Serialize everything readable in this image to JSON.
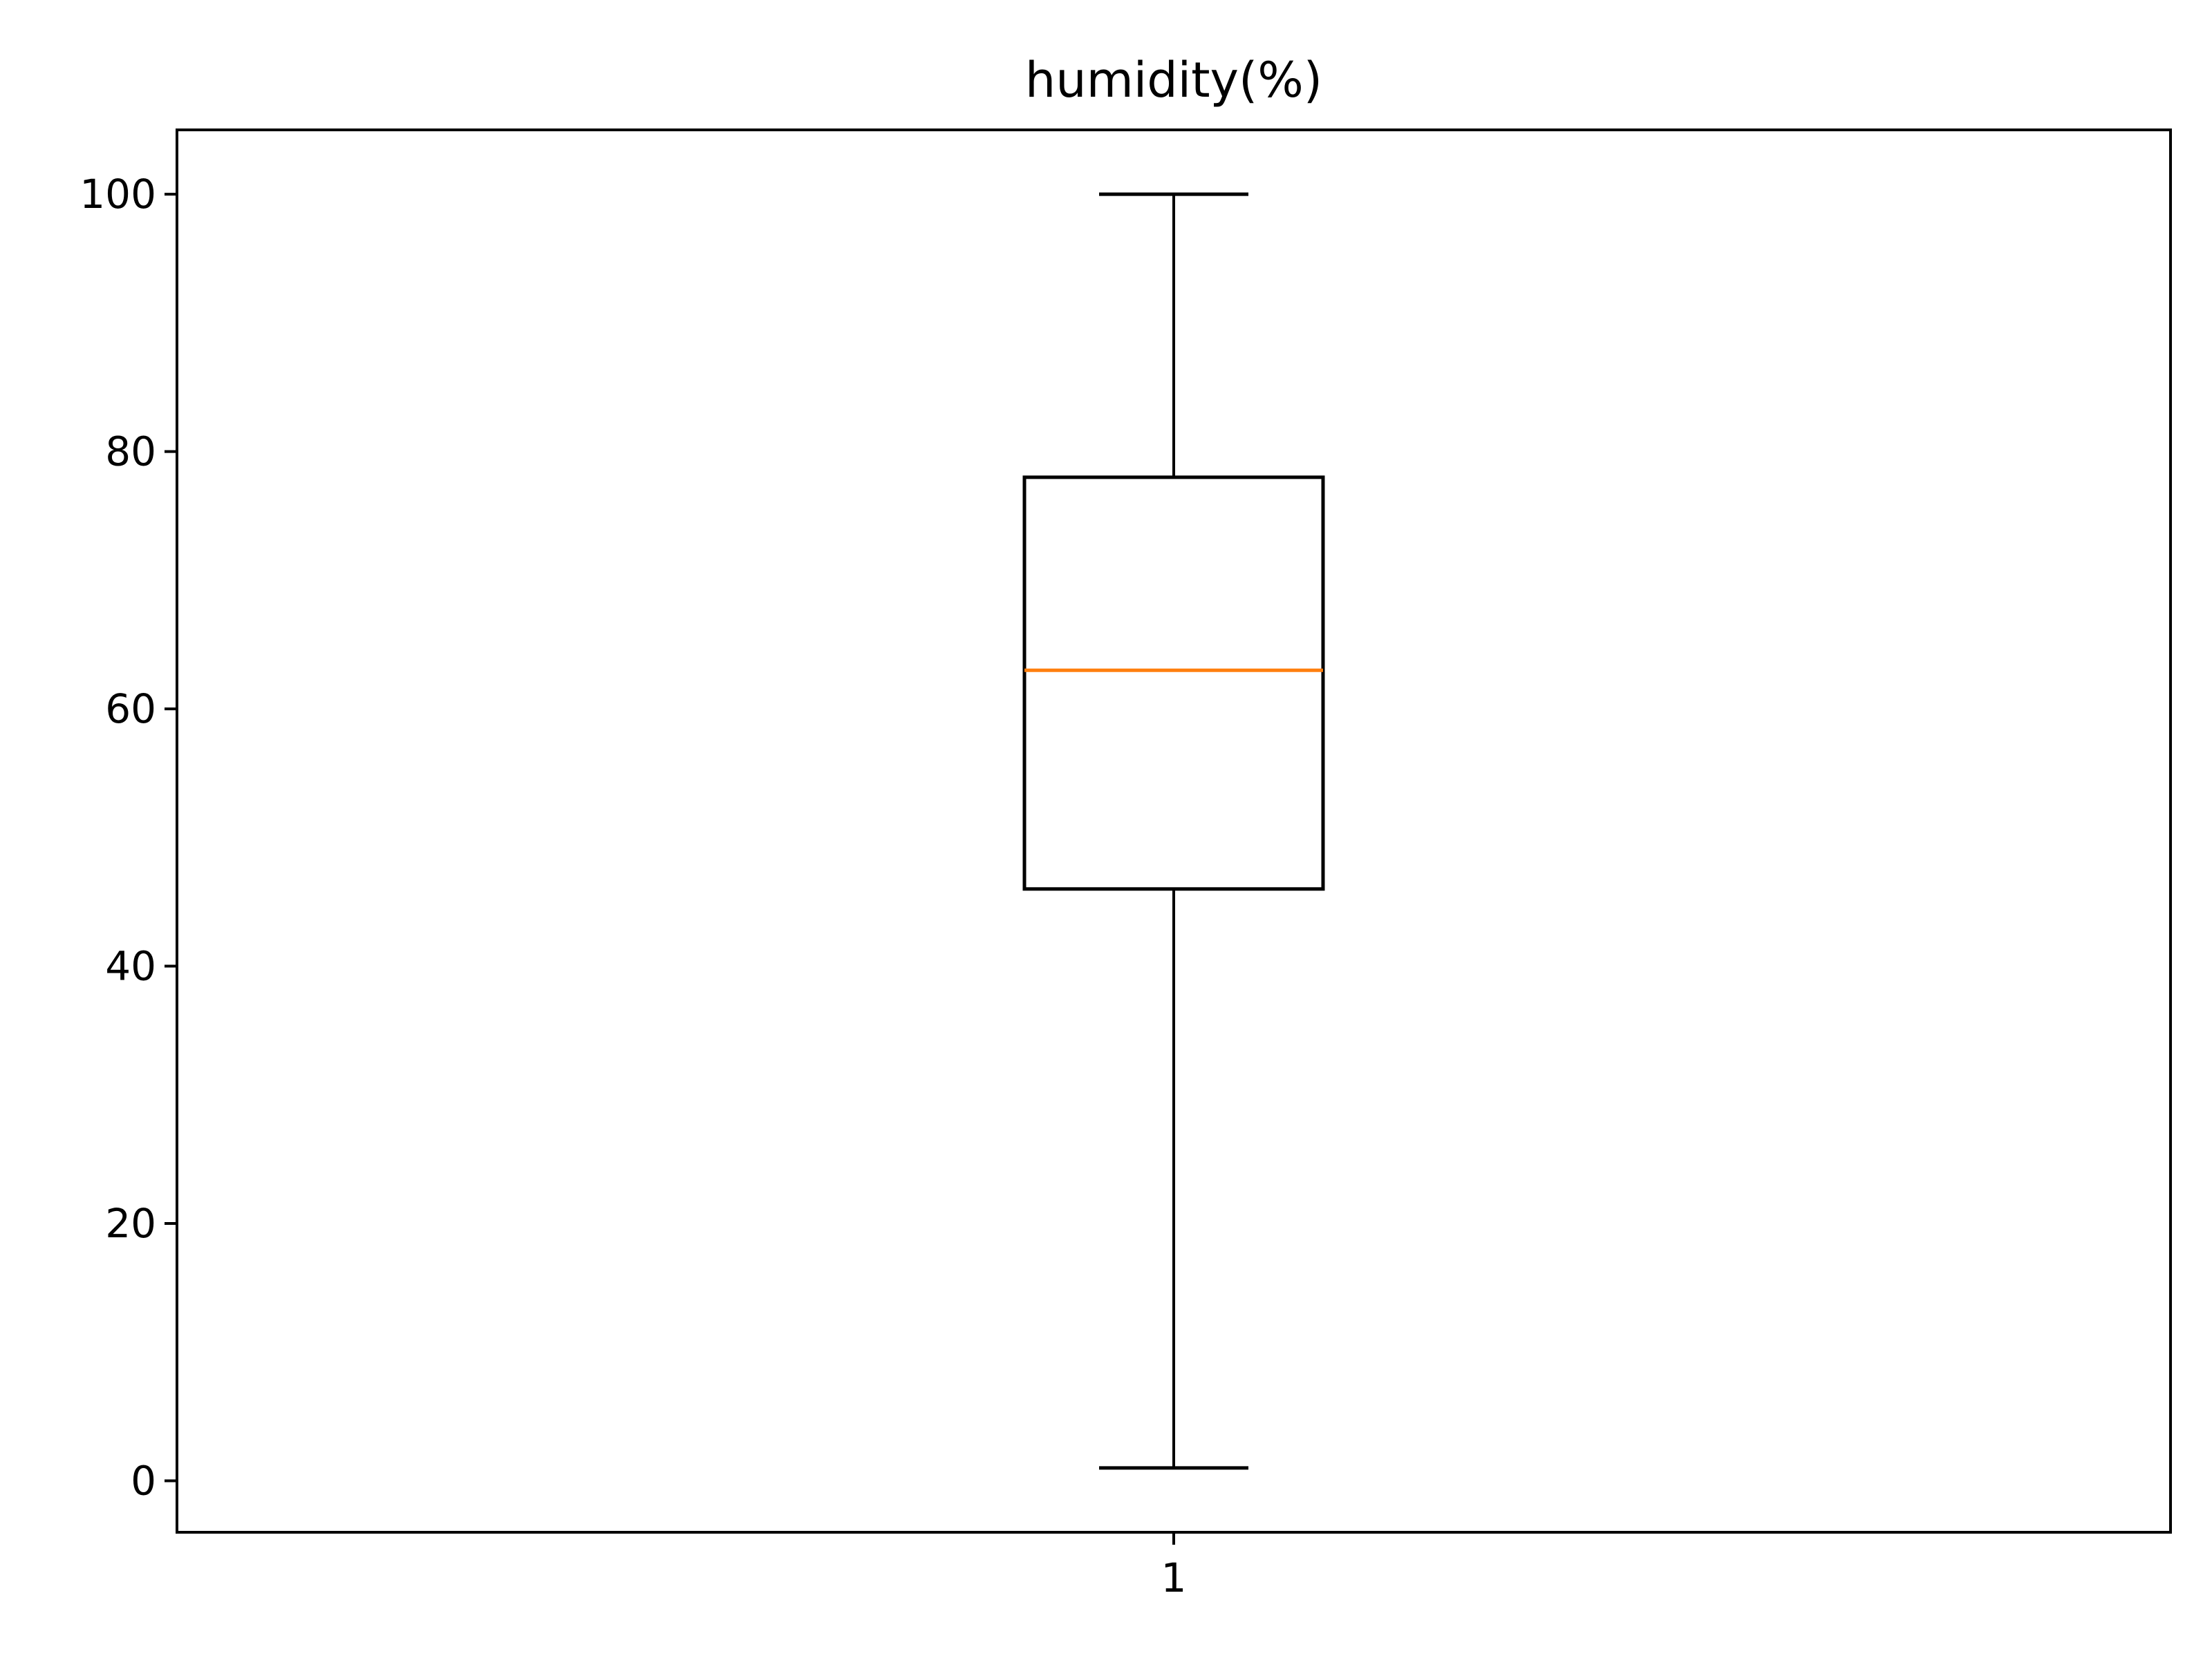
{
  "chart_data": {
    "type": "box",
    "title": "humidity(%)",
    "xlabel": "",
    "ylabel": "",
    "categories": [
      "1"
    ],
    "boxes": [
      {
        "category": "1",
        "whisker_low": 1,
        "q1": 46,
        "median": 63,
        "q3": 78,
        "whisker_high": 100
      }
    ],
    "ylim": [
      -4,
      105
    ],
    "yticks": [
      0,
      20,
      40,
      60,
      80,
      100
    ],
    "grid": false,
    "legend": "none",
    "colors": {
      "box": "#000000",
      "median": "#ff7f0e",
      "axis": "#000000"
    }
  }
}
